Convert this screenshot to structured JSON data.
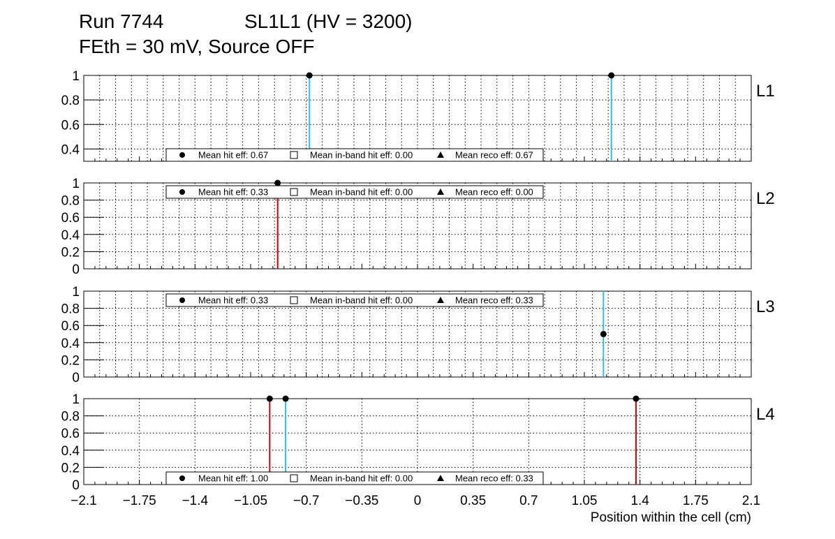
{
  "title": {
    "run": "Run 7744",
    "chamber": "SL1L1 (HV = 3200)",
    "line2": "FEth = 30 mV, Source OFF"
  },
  "chart_data": {
    "type": "scatter",
    "xlabel": "Position within the cell (cm)",
    "xlim": [
      -2.1,
      2.1
    ],
    "xticks": [
      -2.1,
      -1.75,
      -1.4,
      -1.05,
      -0.7,
      -0.35,
      0,
      0.35,
      0.7,
      1.05,
      1.4,
      1.75,
      2.1
    ],
    "xtick_labels": [
      "−2.1",
      "−1.75",
      "−1.4",
      "−1.05",
      "−0.7",
      "−0.35",
      "0",
      "0.35",
      "0.7",
      "1.05",
      "1.4",
      "1.75",
      "2.1"
    ],
    "colors": {
      "cyan": "#33bbee",
      "red": "#cc0000",
      "marker": "#000000"
    },
    "panels": [
      {
        "label": "L1",
        "ylim": [
          0.3,
          1
        ],
        "yticks": [
          0.4,
          0.6,
          0.8,
          1
        ],
        "ytick_labels": [
          "0.4",
          "0.6",
          "0.8",
          "1"
        ],
        "fine_grid": true,
        "legend_pos": "bottom",
        "points": [
          {
            "x": -0.68,
            "y": 1,
            "line": "cyan"
          },
          {
            "x": 1.22,
            "y": 1,
            "line": "cyan"
          }
        ],
        "legend": [
          "Mean hit  eff: 0.67",
          "Mean in-band hit eff: 0.00",
          "Mean reco eff: 0.67"
        ]
      },
      {
        "label": "L2",
        "ylim": [
          0,
          1
        ],
        "yticks": [
          0,
          0.2,
          0.4,
          0.6,
          0.8,
          1
        ],
        "ytick_labels": [
          "0",
          "0.2",
          "0.4",
          "0.6",
          "0.8",
          "1"
        ],
        "fine_grid": true,
        "legend_pos": "top",
        "points": [
          {
            "x": -0.88,
            "y": 1,
            "line": "red"
          }
        ],
        "legend": [
          "Mean hit  eff: 0.33",
          "Mean in-band hit eff: 0.00",
          "Mean reco eff: 0.00"
        ]
      },
      {
        "label": "L3",
        "ylim": [
          0,
          1
        ],
        "yticks": [
          0,
          0.2,
          0.4,
          0.6,
          0.8,
          1
        ],
        "ytick_labels": [
          "0",
          "0.2",
          "0.4",
          "0.6",
          "0.8",
          "1"
        ],
        "fine_grid": true,
        "legend_pos": "top",
        "points": [
          {
            "x": 1.17,
            "y": 0.5,
            "line": "cyan"
          }
        ],
        "legend": [
          "Mean hit  eff: 0.33",
          "Mean in-band hit eff: 0.00",
          "Mean reco eff: 0.33"
        ]
      },
      {
        "label": "L4",
        "ylim": [
          0,
          1
        ],
        "yticks": [
          0,
          0.2,
          0.4,
          0.6,
          0.8,
          1
        ],
        "ytick_labels": [
          "0",
          "0.2",
          "0.4",
          "0.6",
          "0.8",
          "1"
        ],
        "fine_grid": false,
        "legend_pos": "bottom",
        "points": [
          {
            "x": -0.93,
            "y": 1,
            "line": "red"
          },
          {
            "x": -0.83,
            "y": 1,
            "line": "cyan"
          },
          {
            "x": 1.375,
            "y": 1,
            "line": "red"
          }
        ],
        "legend": [
          "Mean hit  eff: 1.00",
          "Mean in-band hit eff: 0.00",
          "Mean reco eff: 0.33"
        ]
      }
    ]
  }
}
